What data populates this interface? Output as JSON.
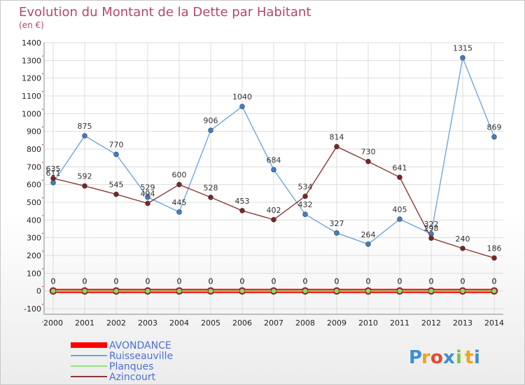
{
  "chart_data": {
    "type": "line",
    "title": "Evolution du Montant de la Dette par Habitant",
    "subtitle": "(en €)",
    "xlabel": "",
    "ylabel": "",
    "ylim": [
      -100,
      1400
    ],
    "yticks": [
      -100,
      0,
      100,
      200,
      300,
      400,
      500,
      600,
      700,
      800,
      900,
      1000,
      1100,
      1200,
      1300,
      1400
    ],
    "categories": [
      "2000",
      "2001",
      "2002",
      "2003",
      "2004",
      "2005",
      "2006",
      "2007",
      "2008",
      "2009",
      "2010",
      "2011",
      "2012",
      "2013",
      "2014"
    ],
    "series": [
      {
        "name": "AVONDANCE",
        "color": "#ff0000",
        "marker": "#ff0000",
        "values": [
          0,
          0,
          0,
          0,
          0,
          0,
          0,
          0,
          0,
          0,
          0,
          0,
          0,
          0,
          0
        ]
      },
      {
        "name": "Ruisseauville",
        "color": "#6fa8dc",
        "marker": "#3c7ec9",
        "values": [
          611,
          875,
          770,
          529,
          445,
          906,
          1040,
          684,
          432,
          327,
          264,
          405,
          322,
          1315,
          869
        ]
      },
      {
        "name": "Planques",
        "color": "#99e080",
        "marker": "#8fd96c",
        "values": [
          0,
          0,
          0,
          0,
          0,
          0,
          0,
          0,
          0,
          0,
          0,
          0,
          0,
          0,
          0
        ]
      },
      {
        "name": "Azincourt",
        "color": "#8b3a3a",
        "marker": "#7a2424",
        "values": [
          635,
          592,
          545,
          494,
          600,
          528,
          453,
          402,
          534,
          814,
          730,
          641,
          298,
          240,
          186
        ]
      }
    ]
  },
  "logo": {
    "letters": [
      "P",
      "r",
      "o",
      "x",
      "i",
      "t",
      "i"
    ],
    "colors": [
      "#3d8fd1",
      "#f2a31b",
      "#e24a2f",
      "#3d8fd1",
      "#7cc242",
      "#f2a31b",
      "#3d8fd1"
    ]
  }
}
